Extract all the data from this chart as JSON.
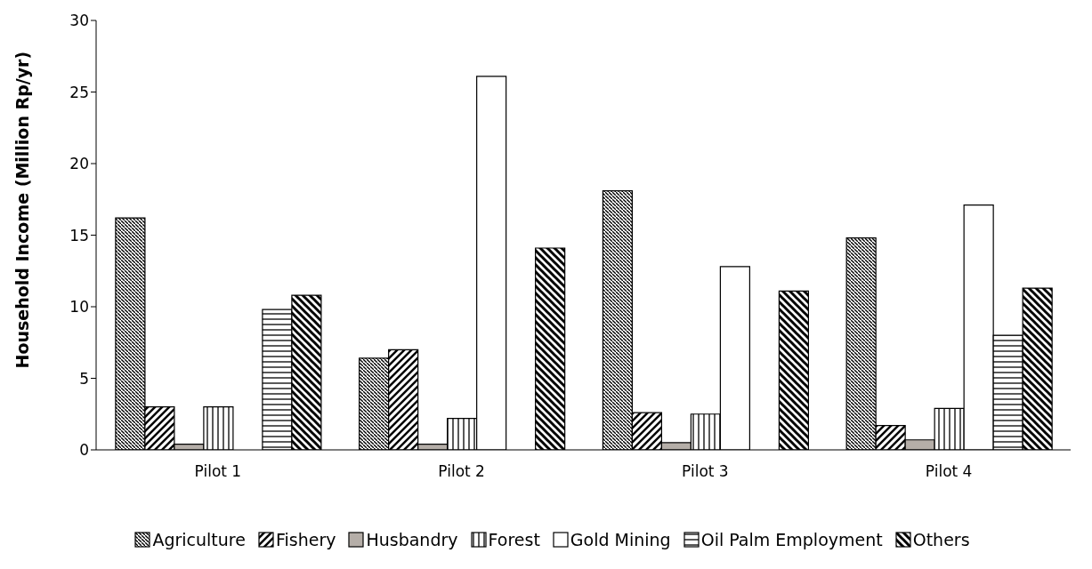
{
  "chart_data": {
    "type": "bar",
    "ylabel": "Household Income (Million Rp/yr)",
    "categories": [
      "Pilot 1",
      "Pilot 2",
      "Pilot 3",
      "Pilot 4"
    ],
    "series": [
      {
        "name": "Agriculture",
        "color": "#000000",
        "values": [
          16.2,
          6.4,
          18.1,
          14.8
        ]
      },
      {
        "name": "Fishery",
        "color": "#000000",
        "values": [
          3.0,
          7.0,
          2.6,
          1.7
        ]
      },
      {
        "name": "Husbandry",
        "color": "#b5aea8",
        "values": [
          0.4,
          0.4,
          0.5,
          0.7
        ]
      },
      {
        "name": "Forest",
        "color": "#000000",
        "values": [
          3.0,
          2.2,
          2.5,
          2.9
        ]
      },
      {
        "name": "Gold Mining",
        "color": "#ffffff",
        "values": [
          null,
          26.1,
          12.8,
          17.1
        ]
      },
      {
        "name": "Oil Palm Employment",
        "color": "#000000",
        "values": [
          9.8,
          null,
          null,
          8.0
        ]
      },
      {
        "name": "Others",
        "color": "#000000",
        "values": [
          10.8,
          14.1,
          11.1,
          11.3
        ]
      }
    ],
    "ylim": [
      0,
      30
    ],
    "yticks": [
      0,
      5,
      10,
      15,
      20,
      25,
      30
    ],
    "grid": false,
    "legend": "bottom"
  }
}
